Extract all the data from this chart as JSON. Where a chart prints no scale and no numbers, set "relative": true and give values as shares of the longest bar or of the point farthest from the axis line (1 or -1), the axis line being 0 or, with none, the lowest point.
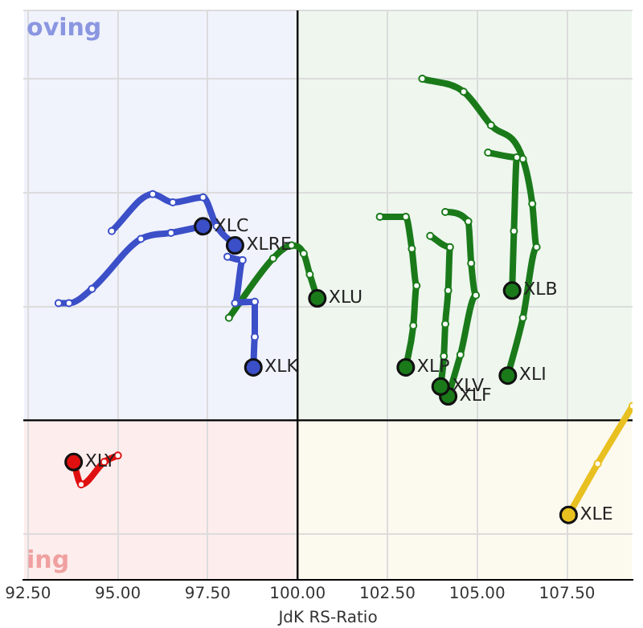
{
  "chart_data": {
    "type": "line",
    "xlabel": "JdK RS-Ratio",
    "relative": true,
    "annotations": [
      "oving",
      "ing"
    ],
    "xlim": [
      92.37,
      109.32
    ],
    "xticks": [
      {
        "value": 92.5,
        "label": "92.50"
      },
      {
        "value": 95,
        "label": "95.00"
      },
      {
        "value": 97.5,
        "label": "97.50"
      },
      {
        "value": 100,
        "label": "100.00"
      },
      {
        "value": 102.5,
        "label": "102.50"
      },
      {
        "value": 105,
        "label": "105.00"
      },
      {
        "value": 107.5,
        "label": "107.50"
      }
    ],
    "ref_lines": [
      {
        "axis": "x",
        "value": 100,
        "color": "#000000"
      },
      {
        "axis": "y",
        "value": 0,
        "color": "#000000"
      }
    ],
    "grid": true,
    "legend": false,
    "marker": "circle",
    "series": [
      {
        "name": "XLC",
        "color": "#3b4fc8",
        "x": [
          93.35,
          93.64,
          94.28,
          95.64,
          96.48,
          97.37
        ],
        "values": [
          0.343,
          0.343,
          0.385,
          0.531,
          0.549,
          0.568
        ]
      },
      {
        "name": "XLRE",
        "color": "#3b4fc8",
        "x": [
          94.83,
          95.97,
          96.53,
          97.37,
          97.75,
          98.26
        ],
        "values": [
          0.554,
          0.662,
          0.638,
          0.653,
          0.568,
          0.512
        ]
      },
      {
        "name": "XLK",
        "color": "#3b4fc8",
        "x": [
          98.05,
          98.47,
          98.26,
          98.81,
          98.81,
          98.77
        ],
        "values": [
          0.479,
          0.469,
          0.343,
          0.347,
          0.244,
          0.155
        ]
      },
      {
        "name": "XLU",
        "color": "#1a7a1a",
        "x": [
          98.09,
          99.32,
          99.83,
          100.17,
          100.34,
          100.55
        ],
        "values": [
          0.3,
          0.474,
          0.512,
          0.488,
          0.427,
          0.357
        ]
      },
      {
        "name": "XLP",
        "color": "#1a7a1a",
        "x": [
          102.29,
          103.01,
          103.18,
          103.31,
          103.22,
          103.01
        ],
        "values": [
          0.596,
          0.596,
          0.502,
          0.394,
          0.277,
          0.155
        ]
      },
      {
        "name": "XLV",
        "color": "#1a7a1a",
        "x": [
          103.69,
          104.24,
          104.19,
          104.11,
          104.07,
          103.98
        ],
        "values": [
          0.54,
          0.507,
          0.38,
          0.282,
          0.188,
          0.099
        ]
      },
      {
        "name": "XLF",
        "color": "#1a7a1a",
        "x": [
          104.11,
          104.75,
          104.83,
          104.96,
          104.53,
          104.19
        ],
        "values": [
          0.61,
          0.582,
          0.46,
          0.366,
          0.192,
          0.07
        ]
      },
      {
        "name": "XLB",
        "color": "#1a7a1a",
        "x": [
          105.3,
          106.1,
          106.02,
          105.97
        ],
        "values": [
          0.784,
          0.77,
          0.554,
          0.38
        ]
      },
      {
        "name": "XLI",
        "color": "#1a7a1a",
        "x": [
          103.47,
          104.62,
          105.38,
          106.27,
          106.53,
          106.65,
          106.27,
          105.85
        ],
        "values": [
          1.0,
          0.962,
          0.864,
          0.765,
          0.634,
          0.507,
          0.3,
          0.131
        ]
      },
      {
        "name": "XLE",
        "color": "#e8c020",
        "x": [
          109.32,
          108.35,
          107.54
        ],
        "values": [
          0.042,
          -0.127,
          -0.277
        ]
      },
      {
        "name": "XLY",
        "color": "#e01010",
        "x": [
          95.0,
          94.62,
          93.98,
          93.77
        ],
        "values": [
          -0.103,
          -0.122,
          -0.188,
          -0.122
        ]
      }
    ]
  }
}
